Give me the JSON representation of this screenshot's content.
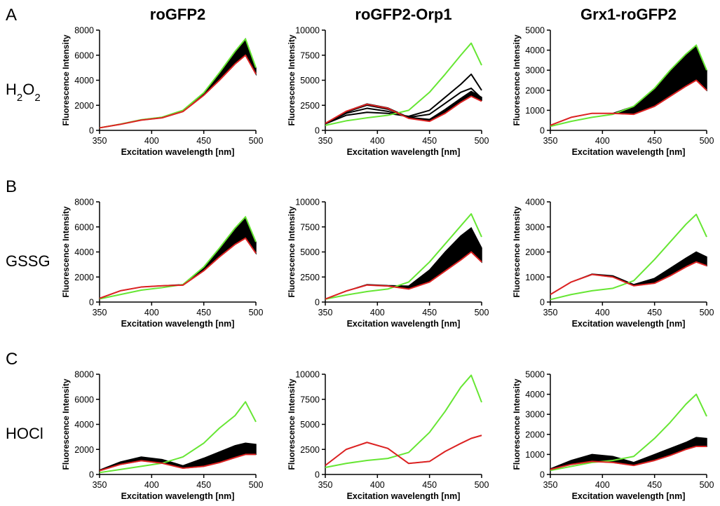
{
  "columns": [
    "roGFP2",
    "roGFP2-Orp1",
    "Grx1-roGFP2"
  ],
  "rows": [
    {
      "letter": "A",
      "treatment_parts": [
        {
          "t": "H",
          "sub": false
        },
        {
          "t": "2",
          "sub": true
        },
        {
          "t": "O",
          "sub": false
        },
        {
          "t": "2",
          "sub": true
        }
      ]
    },
    {
      "letter": "B",
      "treatment_parts": [
        {
          "t": "GSSG",
          "sub": false
        }
      ]
    },
    {
      "letter": "C",
      "treatment_parts": [
        {
          "t": "HOCl",
          "sub": false
        }
      ]
    }
  ],
  "colors": {
    "green": "#66e633",
    "red": "#dd2222",
    "band": "#000000",
    "axis": "#000000"
  },
  "chart_data": [
    {
      "type": "line",
      "row": "A",
      "column": "roGFP2",
      "xlabel": "Excitation wavelength [nm]",
      "ylabel": "Fluorescence Intensity",
      "xlim": [
        350,
        500
      ],
      "ylim": [
        0,
        8000
      ],
      "xticks": [
        350,
        400,
        450,
        500
      ],
      "yticks": [
        0,
        2000,
        4000,
        6000,
        8000
      ],
      "x": [
        350,
        370,
        390,
        410,
        430,
        450,
        465,
        480,
        490,
        500
      ],
      "series": [
        {
          "values": [
            200,
            500,
            850,
            1050,
            1600,
            3000,
            4600,
            6300,
            7300,
            5000
          ]
        },
        {
          "values": [
            200,
            480,
            820,
            1000,
            1500,
            2800,
            4000,
            5300,
            6000,
            4500
          ]
        },
        {
          "kind": "band",
          "values": [
            200,
            480,
            820,
            1000,
            1500,
            2800,
            4000,
            5300,
            6000,
            4500
          ],
          "upper": [
            200,
            500,
            850,
            1050,
            1600,
            3000,
            4600,
            6300,
            7300,
            5000
          ]
        }
      ]
    },
    {
      "type": "line",
      "row": "A",
      "column": "roGFP2-Orp1",
      "xlabel": "Excitation wavelength [nm]",
      "ylabel": "Fluorescence Intensity",
      "xlim": [
        350,
        500
      ],
      "ylim": [
        0,
        10000
      ],
      "xticks": [
        350,
        400,
        450,
        500
      ],
      "yticks": [
        0,
        2500,
        5000,
        7500,
        10000
      ],
      "x": [
        350,
        370,
        390,
        410,
        430,
        450,
        465,
        480,
        490,
        500
      ],
      "series": [
        {
          "values": [
            500,
            950,
            1250,
            1500,
            2000,
            3800,
            5600,
            7500,
            8700,
            6500
          ]
        },
        {
          "values": [
            700,
            1900,
            2600,
            2200,
            1200,
            900,
            1700,
            2800,
            3400,
            2900
          ]
        },
        {
          "values": [
            700,
            1700,
            2200,
            1900,
            1300,
            1600,
            2700,
            3800,
            4200,
            3200
          ]
        },
        {
          "values": [
            650,
            1500,
            1800,
            1700,
            1400,
            2000,
            3300,
            4600,
            5600,
            4000
          ]
        },
        {
          "kind": "band",
          "values": [
            700,
            1800,
            2500,
            2100,
            1250,
            950,
            1800,
            2900,
            3500,
            3000
          ],
          "upper": [
            700,
            1900,
            2650,
            2250,
            1300,
            1100,
            2100,
            3200,
            3900,
            3300
          ]
        }
      ]
    },
    {
      "type": "line",
      "row": "A",
      "column": "Grx1-roGFP2",
      "xlabel": "Excitation wavelength [nm]",
      "ylabel": "Fluorescence Intensity",
      "xlim": [
        350,
        500
      ],
      "ylim": [
        0,
        5000
      ],
      "xticks": [
        350,
        400,
        450,
        500
      ],
      "yticks": [
        0,
        1000,
        2000,
        3000,
        4000,
        5000
      ],
      "x": [
        350,
        370,
        390,
        410,
        430,
        450,
        465,
        480,
        490,
        500
      ],
      "series": [
        {
          "values": [
            200,
            450,
            650,
            800,
            1200,
            2100,
            3000,
            3800,
            4250,
            3000
          ]
        },
        {
          "values": [
            250,
            650,
            850,
            850,
            800,
            1200,
            1700,
            2200,
            2500,
            2000
          ]
        },
        {
          "kind": "band",
          "values": [
            250,
            650,
            850,
            850,
            800,
            1200,
            1700,
            2200,
            2500,
            2000
          ],
          "upper": [
            250,
            650,
            850,
            850,
            1200,
            2100,
            3000,
            3800,
            4250,
            3000
          ]
        }
      ]
    },
    {
      "type": "line",
      "row": "B",
      "column": "roGFP2",
      "xlabel": "Excitation wavelength [nm]",
      "ylabel": "Fluorescence Intensity",
      "xlim": [
        350,
        500
      ],
      "ylim": [
        0,
        8000
      ],
      "xticks": [
        350,
        400,
        450,
        500
      ],
      "yticks": [
        0,
        2000,
        4000,
        6000,
        8000
      ],
      "x": [
        350,
        370,
        390,
        410,
        430,
        450,
        465,
        480,
        490,
        500
      ],
      "series": [
        {
          "values": [
            250,
            600,
            950,
            1150,
            1400,
            2800,
            4300,
            5900,
            6800,
            4800
          ]
        },
        {
          "values": [
            300,
            900,
            1200,
            1300,
            1350,
            2500,
            3600,
            4600,
            5100,
            3900
          ]
        },
        {
          "kind": "band",
          "values": [
            300,
            900,
            1200,
            1300,
            1350,
            2500,
            3600,
            4600,
            5100,
            3900
          ],
          "upper": [
            300,
            900,
            1200,
            1300,
            1400,
            2800,
            4300,
            5900,
            6800,
            4800
          ]
        }
      ]
    },
    {
      "type": "line",
      "row": "B",
      "column": "roGFP2-Orp1",
      "xlabel": "Excitation wavelength [nm]",
      "ylabel": "Fluorescence Intensity",
      "xlim": [
        350,
        500
      ],
      "ylim": [
        0,
        10000
      ],
      "xticks": [
        350,
        400,
        450,
        500
      ],
      "yticks": [
        0,
        2500,
        5000,
        7500,
        10000
      ],
      "x": [
        350,
        370,
        390,
        410,
        430,
        450,
        465,
        480,
        490,
        500
      ],
      "series": [
        {
          "values": [
            300,
            700,
            1050,
            1300,
            2000,
            4000,
            5800,
            7600,
            8800,
            6500
          ]
        },
        {
          "values": [
            300,
            1100,
            1700,
            1600,
            1300,
            2000,
            3100,
            4200,
            5000,
            4000
          ]
        },
        {
          "kind": "band",
          "values": [
            300,
            1100,
            1700,
            1600,
            1300,
            2000,
            3100,
            4200,
            5000,
            4000
          ],
          "upper": [
            300,
            1100,
            1750,
            1650,
            1600,
            3200,
            5000,
            6600,
            7400,
            5400
          ]
        }
      ]
    },
    {
      "type": "line",
      "row": "B",
      "column": "Grx1-roGFP2",
      "xlabel": "Excitation wavelength [nm]",
      "ylabel": "Fluorescence Intensity",
      "xlim": [
        350,
        500
      ],
      "ylim": [
        0,
        4000
      ],
      "xticks": [
        350,
        400,
        450,
        500
      ],
      "yticks": [
        0,
        1000,
        2000,
        3000,
        4000
      ],
      "x": [
        350,
        370,
        390,
        410,
        430,
        450,
        465,
        480,
        490,
        500
      ],
      "series": [
        {
          "values": [
            100,
            300,
            450,
            550,
            850,
            1700,
            2400,
            3100,
            3500,
            2600
          ]
        },
        {
          "values": [
            300,
            800,
            1100,
            1000,
            650,
            750,
            1050,
            1400,
            1600,
            1450
          ]
        },
        {
          "kind": "band",
          "values": [
            300,
            800,
            1100,
            1000,
            650,
            750,
            1050,
            1400,
            1600,
            1450
          ],
          "upper": [
            300,
            800,
            1120,
            1050,
            700,
            950,
            1350,
            1750,
            2000,
            1800
          ]
        }
      ]
    },
    {
      "type": "line",
      "row": "C",
      "column": "roGFP2",
      "xlabel": "Excitation wavelength [nm]",
      "ylabel": "Fluorescence Intensity",
      "xlim": [
        350,
        500
      ],
      "ylim": [
        0,
        8000
      ],
      "xticks": [
        350,
        400,
        450,
        500
      ],
      "yticks": [
        0,
        2000,
        4000,
        6000,
        8000
      ],
      "x": [
        350,
        370,
        390,
        410,
        430,
        450,
        465,
        480,
        490,
        500
      ],
      "series": [
        {
          "values": [
            150,
            400,
            650,
            900,
            1400,
            2500,
            3700,
            4700,
            5800,
            4200
          ]
        },
        {
          "values": [
            300,
            800,
            1100,
            900,
            500,
            650,
            950,
            1350,
            1600,
            1600
          ]
        },
        {
          "kind": "band",
          "values": [
            300,
            800,
            1100,
            900,
            500,
            650,
            950,
            1350,
            1600,
            1600
          ],
          "upper": [
            350,
            1000,
            1400,
            1200,
            700,
            1300,
            1800,
            2300,
            2500,
            2400
          ]
        }
      ]
    },
    {
      "type": "line",
      "row": "C",
      "column": "roGFP2-Orp1",
      "xlabel": "Excitation wavelength [nm]",
      "ylabel": "Fluorescence Intensity",
      "xlim": [
        350,
        500
      ],
      "ylim": [
        0,
        10000
      ],
      "xticks": [
        350,
        400,
        450,
        500
      ],
      "yticks": [
        0,
        2500,
        5000,
        7500,
        10000
      ],
      "x": [
        350,
        370,
        390,
        410,
        430,
        450,
        465,
        480,
        490,
        500
      ],
      "series": [
        {
          "values": [
            700,
            1100,
            1400,
            1600,
            2200,
            4200,
            6300,
            8700,
            9900,
            7200
          ]
        },
        {
          "values": [
            900,
            2500,
            3200,
            2600,
            1100,
            1300,
            2300,
            3100,
            3600,
            3900
          ]
        },
        {
          "kind": "band",
          "values": [
            900,
            2500,
            3200,
            2600,
            1100,
            1300,
            2300,
            3100,
            3600,
            3900
          ],
          "upper": [
            900,
            2500,
            3200,
            2600,
            1100,
            1300,
            2300,
            3100,
            3600,
            3900
          ]
        }
      ]
    },
    {
      "type": "line",
      "row": "C",
      "column": "Grx1-roGFP2",
      "xlabel": "Excitation wavelength [nm]",
      "ylabel": "Fluorescence Intensity",
      "xlim": [
        350,
        500
      ],
      "ylim": [
        0,
        5000
      ],
      "xticks": [
        350,
        400,
        450,
        500
      ],
      "yticks": [
        0,
        1000,
        2000,
        3000,
        4000,
        5000
      ],
      "x": [
        350,
        370,
        390,
        410,
        430,
        450,
        465,
        480,
        490,
        500
      ],
      "series": [
        {
          "values": [
            200,
            400,
            600,
            700,
            900,
            1800,
            2600,
            3500,
            4000,
            2900
          ]
        },
        {
          "values": [
            250,
            500,
            650,
            600,
            450,
            700,
            950,
            1250,
            1400,
            1400
          ]
        },
        {
          "kind": "band",
          "values": [
            250,
            500,
            650,
            600,
            450,
            700,
            950,
            1250,
            1400,
            1400
          ],
          "upper": [
            280,
            700,
            1000,
            900,
            600,
            1000,
            1300,
            1600,
            1850,
            1800
          ]
        }
      ]
    }
  ]
}
